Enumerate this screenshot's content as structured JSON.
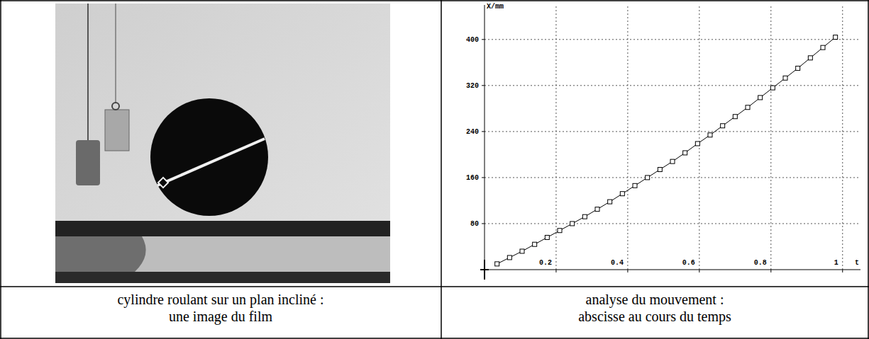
{
  "chart_data": {
    "type": "line",
    "x_label": "t",
    "y_label": "X/mm",
    "x": [
      0.035,
      0.07,
      0.105,
      0.14,
      0.175,
      0.21,
      0.245,
      0.28,
      0.315,
      0.35,
      0.385,
      0.42,
      0.455,
      0.49,
      0.525,
      0.56,
      0.595,
      0.63,
      0.665,
      0.7,
      0.735,
      0.77,
      0.805,
      0.84,
      0.875,
      0.91,
      0.945,
      0.98
    ],
    "values": [
      10,
      21,
      32,
      44,
      56,
      68,
      80,
      92,
      105,
      118,
      132,
      146,
      160,
      174,
      188,
      203,
      219,
      234,
      250,
      266,
      282,
      299,
      316,
      333,
      350,
      368,
      386,
      404
    ],
    "color": "#000000",
    "marker": "square",
    "line_style": "solid",
    "xlim": [
      0,
      1.05
    ],
    "xticks": [
      0.2,
      0.4,
      0.6,
      0.8,
      1
    ],
    "ylim": [
      0,
      460
    ],
    "yticks": [
      80,
      160,
      240,
      320,
      400
    ],
    "grid": true
  },
  "captions": [
    [
      "cylindre roulant sur un plan incliné :",
      "une image du film"
    ],
    [
      "analyse du mouvement :",
      "abscisse au cours du temps"
    ]
  ]
}
